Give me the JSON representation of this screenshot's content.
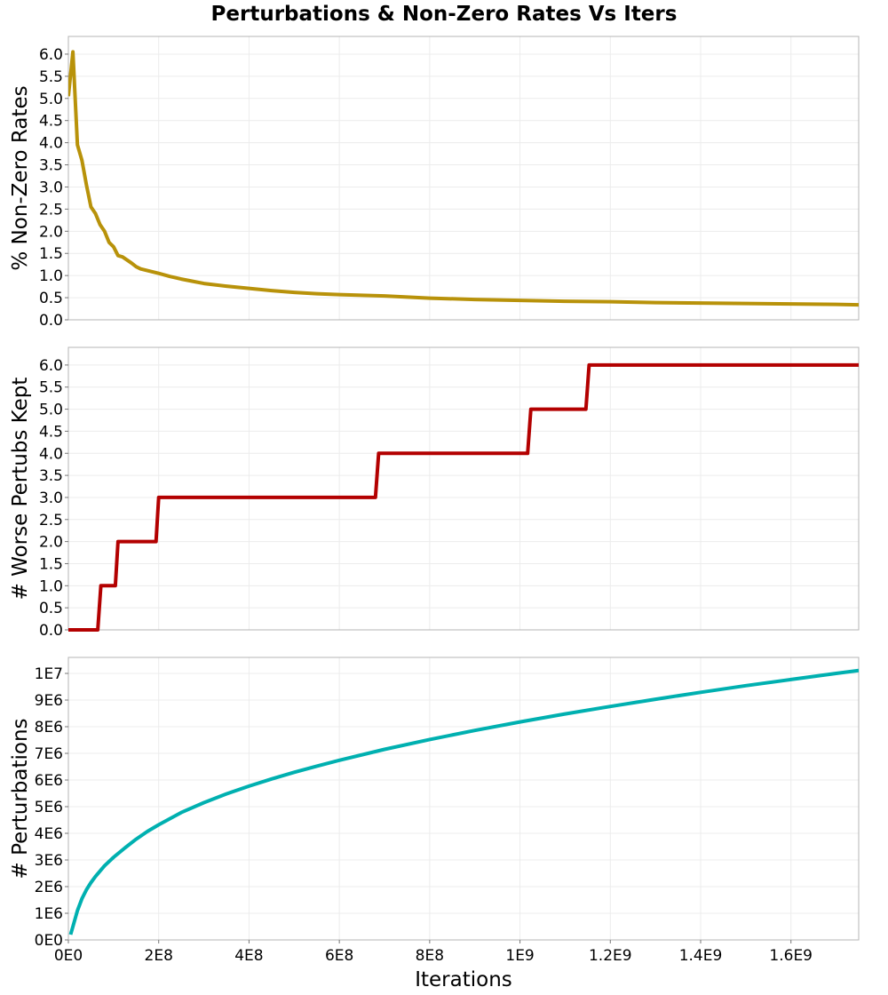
{
  "figure": {
    "title": "Perturbations & Non-Zero Rates Vs Iters",
    "background": "#ffffff",
    "frame_color": "#b4b4b4",
    "grid_color": "#ececec"
  },
  "chart_data": [
    {
      "type": "line",
      "ylabel": "% Non-Zero Rates",
      "xlabel": "",
      "xlim": [
        0,
        1750000000
      ],
      "ylim": [
        0,
        6.4
      ],
      "grid": true,
      "x_ticks": [
        0,
        200000000,
        400000000,
        600000000,
        800000000,
        1000000000,
        1200000000,
        1400000000,
        1600000000
      ],
      "y_ticks": [
        0,
        0.5,
        1.0,
        1.5,
        2.0,
        2.5,
        3.0,
        3.5,
        4.0,
        4.5,
        5.0,
        5.5,
        6.0
      ],
      "y_tick_labels": [
        "0.0",
        "0.5",
        "1.0",
        "1.5",
        "2.0",
        "2.5",
        "3.0",
        "3.5",
        "4.0",
        "4.5",
        "5.0",
        "5.5",
        "6.0"
      ],
      "series": [
        {
          "color": "#b8920a",
          "x": [
            0,
            10000000,
            20000000,
            30000000,
            40000000,
            50000000,
            60000000,
            70000000,
            80000000,
            90000000,
            100000000,
            110000000,
            120000000,
            130000000,
            140000000,
            150000000,
            160000000,
            180000000,
            200000000,
            225000000,
            250000000,
            275000000,
            300000000,
            350000000,
            400000000,
            450000000,
            500000000,
            550000000,
            600000000,
            700000000,
            800000000,
            900000000,
            1000000000,
            1100000000,
            1200000000,
            1300000000,
            1400000000,
            1500000000,
            1600000000,
            1700000000,
            1750000000
          ],
          "y": [
            5.05,
            6.05,
            3.95,
            3.6,
            3.05,
            2.55,
            2.4,
            2.15,
            2.0,
            1.75,
            1.65,
            1.45,
            1.42,
            1.35,
            1.28,
            1.2,
            1.15,
            1.1,
            1.05,
            0.98,
            0.92,
            0.87,
            0.82,
            0.76,
            0.71,
            0.66,
            0.62,
            0.59,
            0.57,
            0.54,
            0.49,
            0.46,
            0.44,
            0.42,
            0.41,
            0.39,
            0.38,
            0.37,
            0.36,
            0.35,
            0.34
          ]
        }
      ]
    },
    {
      "type": "line",
      "ylabel": "# Worse Pertubs Kept",
      "xlabel": "",
      "xlim": [
        0,
        1750000000
      ],
      "ylim": [
        0,
        6.4
      ],
      "grid": true,
      "x_ticks": [
        0,
        200000000,
        400000000,
        600000000,
        800000000,
        1000000000,
        1200000000,
        1400000000,
        1600000000
      ],
      "y_ticks": [
        0,
        0.5,
        1.0,
        1.5,
        2.0,
        2.5,
        3.0,
        3.5,
        4.0,
        4.5,
        5.0,
        5.5,
        6.0
      ],
      "y_tick_labels": [
        "0.0",
        "0.5",
        "1.0",
        "1.5",
        "2.0",
        "2.5",
        "3.0",
        "3.5",
        "4.0",
        "4.5",
        "5.0",
        "5.5",
        "6.0"
      ],
      "series": [
        {
          "color": "#b30000",
          "x": [
            0,
            65000000,
            72000000,
            104000000,
            110000000,
            194000000,
            200000000,
            680000000,
            687000000,
            1017000000,
            1024000000,
            1146000000,
            1153000000,
            1750000000
          ],
          "y": [
            0,
            0,
            1,
            1,
            2,
            2,
            3,
            3,
            4,
            4,
            5,
            5,
            6,
            6
          ]
        }
      ]
    },
    {
      "type": "line",
      "ylabel": "# Perturbations",
      "xlabel": "Iterations",
      "xlim": [
        0,
        1750000000
      ],
      "ylim": [
        0,
        10600000
      ],
      "grid": true,
      "x_ticks": [
        0,
        200000000,
        400000000,
        600000000,
        800000000,
        1000000000,
        1200000000,
        1400000000,
        1600000000
      ],
      "x_tick_labels": [
        "0E0",
        "2E8",
        "4E8",
        "6E8",
        "8E8",
        "1E9",
        "1.2E9",
        "1.4E9",
        "1.6E9"
      ],
      "y_ticks": [
        0,
        1000000,
        2000000,
        3000000,
        4000000,
        5000000,
        6000000,
        7000000,
        8000000,
        9000000,
        10000000
      ],
      "y_tick_labels": [
        "0E0",
        "1E6",
        "2E6",
        "3E6",
        "4E6",
        "5E6",
        "6E6",
        "7E6",
        "8E6",
        "9E6",
        "1E7"
      ],
      "series": [
        {
          "color": "#00b0b0",
          "x": [
            5000000,
            10000000,
            20000000,
            30000000,
            40000000,
            50000000,
            60000000,
            80000000,
            100000000,
            125000000,
            150000000,
            175000000,
            200000000,
            250000000,
            300000000,
            350000000,
            400000000,
            450000000,
            500000000,
            550000000,
            600000000,
            700000000,
            800000000,
            900000000,
            1000000000,
            1100000000,
            1200000000,
            1300000000,
            1400000000,
            1500000000,
            1600000000,
            1700000000,
            1750000000
          ],
          "y": [
            200000,
            500000,
            1100000,
            1550000,
            1880000,
            2150000,
            2380000,
            2780000,
            3100000,
            3450000,
            3780000,
            4070000,
            4320000,
            4780000,
            5150000,
            5480000,
            5770000,
            6040000,
            6290000,
            6520000,
            6740000,
            7150000,
            7520000,
            7860000,
            8180000,
            8480000,
            8760000,
            9030000,
            9290000,
            9540000,
            9770000,
            10000000,
            10110000
          ]
        }
      ]
    }
  ]
}
